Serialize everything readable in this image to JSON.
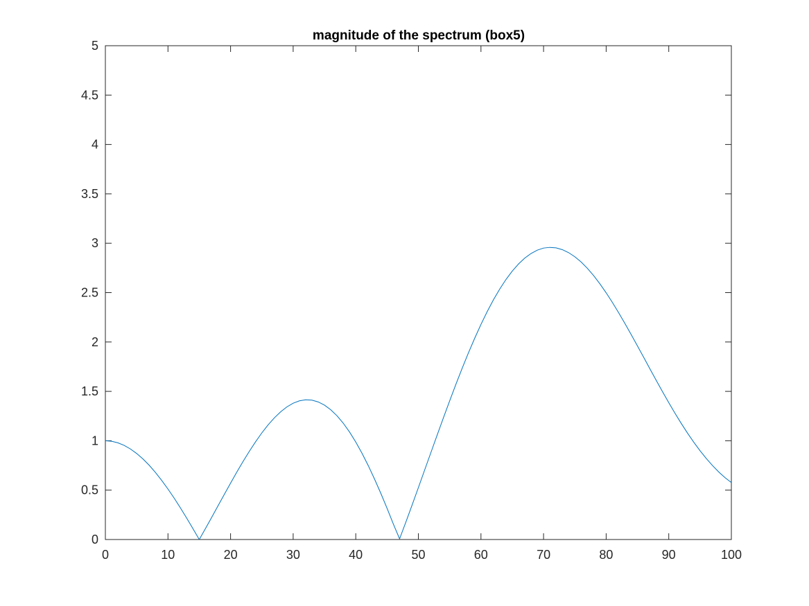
{
  "chart_data": {
    "type": "line",
    "title": "magnitude of the spectrum (box5)",
    "xlabel": "",
    "ylabel": "",
    "xlim": [
      0,
      100
    ],
    "ylim": [
      0,
      5
    ],
    "x_ticks": [
      0,
      10,
      20,
      30,
      40,
      50,
      60,
      70,
      80,
      90,
      100
    ],
    "y_ticks": [
      0,
      0.5,
      1,
      1.5,
      2,
      2.5,
      3,
      3.5,
      4,
      4.5,
      5
    ],
    "x_tick_labels": [
      "0",
      "10",
      "20",
      "30",
      "40",
      "50",
      "60",
      "70",
      "80",
      "90",
      "100"
    ],
    "y_tick_labels": [
      "0",
      "0.5",
      "1",
      "1.5",
      "2",
      "2.5",
      "3",
      "3.5",
      "4",
      "4.5",
      "5"
    ],
    "grid": false,
    "box": true,
    "series": [
      {
        "color": "#0072BD",
        "x": [
          0,
          1,
          2,
          3,
          4,
          5,
          6,
          7,
          8,
          9,
          10,
          11,
          12,
          13,
          14,
          15,
          16,
          17,
          18,
          19,
          20,
          21,
          22,
          23,
          24,
          25,
          26,
          27,
          28,
          29,
          30,
          31,
          32,
          33,
          34,
          35,
          36,
          37,
          38,
          39,
          40,
          41,
          42,
          43,
          44,
          45,
          46,
          47,
          48,
          49,
          50,
          51,
          52,
          53,
          54,
          55,
          56,
          57,
          58,
          59,
          60,
          61,
          62,
          63,
          64,
          65,
          66,
          67,
          68,
          69,
          70,
          71,
          72,
          73,
          74,
          75,
          76,
          77,
          78,
          79,
          80,
          81,
          82,
          83,
          84,
          85,
          86,
          87,
          88,
          89,
          90,
          91,
          92,
          93,
          94,
          95,
          96,
          97,
          98,
          99,
          100
        ],
        "y": [
          1.0,
          0.995,
          0.979,
          0.953,
          0.917,
          0.871,
          0.816,
          0.752,
          0.679,
          0.598,
          0.511,
          0.418,
          0.319,
          0.216,
          0.109,
          0.0,
          0.112,
          0.226,
          0.342,
          0.457,
          0.571,
          0.683,
          0.791,
          0.893,
          0.99,
          1.08,
          1.161,
          1.232,
          1.293,
          1.343,
          1.38,
          1.404,
          1.415,
          1.411,
          1.393,
          1.361,
          1.314,
          1.253,
          1.178,
          1.089,
          0.987,
          0.873,
          0.748,
          0.612,
          0.468,
          0.316,
          0.157,
          0.007,
          0.176,
          0.349,
          0.525,
          0.703,
          0.88,
          1.057,
          1.232,
          1.404,
          1.572,
          1.734,
          1.89,
          2.038,
          2.178,
          2.308,
          2.428,
          2.536,
          2.633,
          2.718,
          2.79,
          2.85,
          2.896,
          2.93,
          2.951,
          2.958,
          2.953,
          2.935,
          2.905,
          2.863,
          2.81,
          2.746,
          2.672,
          2.589,
          2.498,
          2.4,
          2.296,
          2.187,
          2.075,
          1.96,
          1.844,
          1.727,
          1.611,
          1.497,
          1.386,
          1.278,
          1.175,
          1.077,
          0.985,
          0.899,
          0.82,
          0.748,
          0.683,
          0.626,
          0.577
        ]
      }
    ]
  }
}
